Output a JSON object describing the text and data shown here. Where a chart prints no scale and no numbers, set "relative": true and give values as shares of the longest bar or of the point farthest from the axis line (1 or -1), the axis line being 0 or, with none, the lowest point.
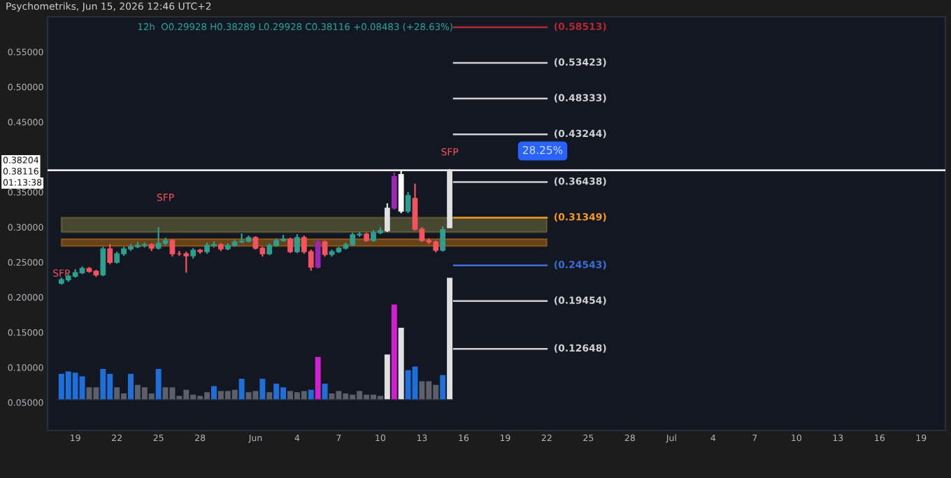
{
  "chart_data": [
    {
      "type": "candlestick",
      "title": "Psychometriks, Jun 15, 2026 12:46 UTC+2",
      "subtitle": "12h  O0.29928 H0.38289 L0.29928 C0.38116 +0.08483 (+28.63%)",
      "x": [
        "2026-05-18T00:00",
        "2026-05-18T12:00",
        "2026-05-19T00:00",
        "2026-05-19T12:00",
        "2026-05-20T00:00",
        "2026-05-20T12:00",
        "2026-05-21T00:00",
        "2026-05-21T12:00",
        "2026-05-22T00:00",
        "2026-05-22T12:00",
        "2026-05-23T00:00",
        "2026-05-23T12:00",
        "2026-05-24T00:00",
        "2026-05-24T12:00",
        "2026-05-25T00:00",
        "2026-05-25T12:00",
        "2026-05-26T00:00",
        "2026-05-26T12:00",
        "2026-05-27T00:00",
        "2026-05-27T12:00",
        "2026-05-28T00:00",
        "2026-05-28T12:00",
        "2026-05-29T00:00",
        "2026-05-29T12:00",
        "2026-05-30T00:00",
        "2026-05-30T12:00",
        "2026-05-31T00:00",
        "2026-05-31T12:00",
        "2026-06-01T00:00",
        "2026-06-01T12:00",
        "2026-06-02T00:00",
        "2026-06-02T12:00",
        "2026-06-03T00:00",
        "2026-06-03T12:00",
        "2026-06-04T00:00",
        "2026-06-04T12:00",
        "2026-06-05T00:00",
        "2026-06-05T12:00",
        "2026-06-06T00:00",
        "2026-06-06T12:00",
        "2026-06-07T00:00",
        "2026-06-07T12:00",
        "2026-06-08T00:00",
        "2026-06-08T12:00",
        "2026-06-09T00:00",
        "2026-06-09T12:00",
        "2026-06-10T00:00",
        "2026-06-10T12:00",
        "2026-06-11T00:00",
        "2026-06-11T12:00",
        "2026-06-12T00:00",
        "2026-06-12T12:00",
        "2026-06-13T00:00",
        "2026-06-13T12:00",
        "2026-06-14T00:00",
        "2026-06-14T12:00",
        "2026-06-15T00:00"
      ],
      "ohlc": [
        [
          0.22,
          0.228,
          0.218,
          0.225
        ],
        [
          0.225,
          0.233,
          0.222,
          0.23
        ],
        [
          0.23,
          0.24,
          0.228,
          0.235
        ],
        [
          0.235,
          0.244,
          0.233,
          0.241
        ],
        [
          0.241,
          0.243,
          0.235,
          0.237
        ],
        [
          0.237,
          0.239,
          0.229,
          0.232
        ],
        [
          0.232,
          0.272,
          0.23,
          0.269
        ],
        [
          0.269,
          0.276,
          0.247,
          0.25
        ],
        [
          0.25,
          0.265,
          0.248,
          0.262
        ],
        [
          0.262,
          0.272,
          0.259,
          0.269
        ],
        [
          0.269,
          0.276,
          0.266,
          0.272
        ],
        [
          0.272,
          0.279,
          0.27,
          0.274
        ],
        [
          0.274,
          0.278,
          0.271,
          0.275
        ],
        [
          0.275,
          0.277,
          0.266,
          0.27
        ],
        [
          0.27,
          0.3,
          0.268,
          0.277
        ],
        [
          0.277,
          0.285,
          0.274,
          0.281
        ],
        [
          0.281,
          0.283,
          0.258,
          0.262
        ],
        [
          0.262,
          0.266,
          0.259,
          0.262
        ],
        [
          0.262,
          0.265,
          0.235,
          0.259
        ],
        [
          0.259,
          0.27,
          0.255,
          0.267
        ],
        [
          0.267,
          0.269,
          0.262,
          0.265
        ],
        [
          0.265,
          0.278,
          0.262,
          0.274
        ],
        [
          0.274,
          0.28,
          0.271,
          0.275
        ],
        [
          0.275,
          0.277,
          0.266,
          0.269
        ],
        [
          0.269,
          0.277,
          0.267,
          0.274
        ],
        [
          0.274,
          0.282,
          0.272,
          0.279
        ],
        [
          0.279,
          0.291,
          0.277,
          0.28
        ],
        [
          0.28,
          0.288,
          0.278,
          0.285
        ],
        [
          0.285,
          0.287,
          0.268,
          0.27
        ],
        [
          0.27,
          0.272,
          0.258,
          0.262
        ],
        [
          0.262,
          0.277,
          0.26,
          0.274
        ],
        [
          0.274,
          0.284,
          0.272,
          0.281
        ],
        [
          0.281,
          0.289,
          0.279,
          0.283
        ],
        [
          0.283,
          0.285,
          0.263,
          0.265
        ],
        [
          0.265,
          0.29,
          0.263,
          0.285
        ],
        [
          0.285,
          0.288,
          0.262,
          0.265
        ],
        [
          0.265,
          0.268,
          0.238,
          0.243
        ],
        [
          0.243,
          0.282,
          0.241,
          0.279
        ],
        [
          0.279,
          0.281,
          0.258,
          0.261
        ],
        [
          0.261,
          0.268,
          0.258,
          0.265
        ],
        [
          0.265,
          0.272,
          0.263,
          0.27
        ],
        [
          0.27,
          0.278,
          0.268,
          0.275
        ],
        [
          0.275,
          0.292,
          0.273,
          0.289
        ],
        [
          0.289,
          0.293,
          0.286,
          0.29
        ],
        [
          0.29,
          0.292,
          0.279,
          0.281
        ],
        [
          0.281,
          0.296,
          0.279,
          0.292
        ],
        [
          0.292,
          0.3,
          0.29,
          0.295
        ],
        [
          0.295,
          0.334,
          0.293,
          0.327
        ],
        [
          0.327,
          0.378,
          0.325,
          0.372
        ],
        [
          0.375,
          0.38,
          0.32,
          0.323
        ],
        [
          0.323,
          0.35,
          0.32,
          0.345
        ],
        [
          0.341,
          0.362,
          0.295,
          0.297
        ],
        [
          0.297,
          0.3,
          0.279,
          0.281
        ],
        [
          0.281,
          0.284,
          0.276,
          0.279
        ],
        [
          0.279,
          0.281,
          0.264,
          0.267
        ],
        [
          0.267,
          0.301,
          0.265,
          0.29633
        ],
        [
          0.29928,
          0.38289,
          0.29928,
          0.38116
        ]
      ],
      "colors": [
        "#2e9e8f",
        "#2e9e8f",
        "#2e9e8f",
        "#2e9e8f",
        "#f7525f",
        "#f7525f",
        "#2e9e8f",
        "#f7525f",
        "#2e9e8f",
        "#2e9e8f",
        "#2e9e8f",
        "#2e9e8f",
        "#2e9e8f",
        "#f7525f",
        "#2e9e8f",
        "#2e9e8f",
        "#f7525f",
        "#f7525f",
        "#f7525f",
        "#2e9e8f",
        "#f7525f",
        "#2e9e8f",
        "#2e9e8f",
        "#f7525f",
        "#2e9e8f",
        "#2e9e8f",
        "#2e9e8f",
        "#2e9e8f",
        "#f7525f",
        "#f7525f",
        "#2e9e8f",
        "#2e9e8f",
        "#2e9e8f",
        "#f7525f",
        "#2e9e8f",
        "#f7525f",
        "#f7525f",
        "#9c27b0",
        "#f7525f",
        "#2e9e8f",
        "#2e9e8f",
        "#2e9e8f",
        "#2e9e8f",
        "#2e9e8f",
        "#f7525f",
        "#2e9e8f",
        "#2e9e8f",
        "#e0e0e0",
        "#9c27b0",
        "#ffffff",
        "#2e9e8f",
        "#f7525f",
        "#f7525f",
        "#f7525f",
        "#f7525f",
        "#2e9e8f",
        "#e0e0e0"
      ],
      "xlim": [
        "2026-05-17T00:00",
        "2026-07-20T18:00"
      ],
      "xticks": [
        {
          "value": "2026-05-19",
          "label": "19"
        },
        {
          "value": "2026-05-22",
          "label": "22"
        },
        {
          "value": "2026-05-25",
          "label": "25"
        },
        {
          "value": "2026-05-28",
          "label": "28"
        },
        {
          "value": "2026-06-01",
          "label": "Jun"
        },
        {
          "value": "2026-06-04",
          "label": "4"
        },
        {
          "value": "2026-06-07",
          "label": "7"
        },
        {
          "value": "2026-06-10",
          "label": "10"
        },
        {
          "value": "2026-06-13",
          "label": "13"
        },
        {
          "value": "2026-06-16",
          "label": "16"
        },
        {
          "value": "2026-06-19",
          "label": "19"
        },
        {
          "value": "2026-06-22",
          "label": "22"
        },
        {
          "value": "2026-06-25",
          "label": "25"
        },
        {
          "value": "2026-06-28",
          "label": "28"
        },
        {
          "value": "2026-07-01",
          "label": "Jul"
        },
        {
          "value": "2026-07-04",
          "label": "4"
        },
        {
          "value": "2026-07-07",
          "label": "7"
        },
        {
          "value": "2026-07-10",
          "label": "10"
        },
        {
          "value": "2026-07-13",
          "label": "13"
        },
        {
          "value": "2026-07-16",
          "label": "16"
        },
        {
          "value": "2026-07-19",
          "label": "19"
        }
      ],
      "ylim": [
        0.01,
        0.6
      ],
      "yticks": [
        {
          "value": 0.05,
          "label": "0.05000"
        },
        {
          "value": 0.1,
          "label": "0.10000"
        },
        {
          "value": 0.15,
          "label": "0.15000"
        },
        {
          "value": 0.2,
          "label": "0.20000"
        },
        {
          "value": 0.25,
          "label": "0.25000"
        },
        {
          "value": 0.3,
          "label": "0.30000"
        },
        {
          "value": 0.35,
          "label": "0.35000"
        },
        {
          "value": 0.45,
          "label": "0.45000"
        },
        {
          "value": 0.5,
          "label": "0.50000"
        },
        {
          "value": 0.55,
          "label": "0.55000"
        }
      ],
      "ref_lines": [
        {
          "axis": "y",
          "value": 0.38116,
          "label": null,
          "color": "#e8e8e8"
        },
        {
          "axis": "y",
          "value": 0.58513,
          "label": "(0.58513)",
          "color": "#b22833"
        },
        {
          "axis": "y",
          "value": 0.53423,
          "label": "(0.53423)",
          "color": "#d0d0d0"
        },
        {
          "axis": "y",
          "value": 0.48333,
          "label": "(0.48333)",
          "color": "#d0d0d0"
        },
        {
          "axis": "y",
          "value": 0.43244,
          "label": "(0.43244)",
          "color": "#d0d0d0"
        },
        {
          "axis": "y",
          "value": 0.36438,
          "label": "(0.36438)",
          "color": "#d0d0d0"
        },
        {
          "axis": "y",
          "value": 0.31349,
          "label": "(0.31349)",
          "color": "#f59b22"
        },
        {
          "axis": "y",
          "value": 0.24543,
          "label": "(0.24543)",
          "color": "#3a6fd8"
        },
        {
          "axis": "y",
          "value": 0.19454,
          "label": "(0.19454)",
          "color": "#d0d0d0"
        },
        {
          "axis": "y",
          "value": 0.12648,
          "label": "(0.12648)",
          "color": "#d0d0d0"
        }
      ],
      "bands": [
        {
          "axis": "y",
          "from": 0.273,
          "to": 0.283,
          "color": "#c87a12"
        },
        {
          "axis": "y",
          "from": 0.293,
          "to": 0.31349,
          "color": "#8a8240"
        }
      ],
      "annotations": [
        "0.38204",
        "0.38116",
        "01:13:38",
        {
          "text": "SFP",
          "x": "2026-05-25T12:00",
          "y": 0.318
        },
        {
          "text": "SFP",
          "x": "2026-06-15T00:00",
          "y": 0.38289
        },
        {
          "text": "SFP",
          "x": "2026-05-18T00:00",
          "y": 0.21
        },
        "28.25%"
      ]
    },
    {
      "type": "bar",
      "relative": true,
      "categories": [
        null,
        null,
        null,
        null,
        null,
        null,
        null,
        null,
        null,
        null,
        null,
        null,
        null,
        null,
        null,
        null,
        null,
        null,
        null,
        null,
        null,
        null,
        null,
        null,
        null,
        null,
        null,
        null,
        null,
        null,
        null,
        null,
        null,
        null,
        null,
        null,
        null,
        null,
        null,
        null,
        null,
        null,
        null,
        null,
        null,
        null,
        null,
        null,
        null,
        null,
        null,
        null,
        null,
        null,
        null,
        null,
        null
      ],
      "values": [
        0.21,
        0.23,
        0.22,
        0.19,
        0.1,
        0.1,
        0.25,
        0.21,
        0.1,
        0.05,
        0.21,
        0.12,
        0.1,
        0.05,
        0.25,
        0.1,
        0.1,
        0.03,
        0.08,
        0.04,
        0.03,
        0.06,
        0.11,
        0.07,
        0.07,
        0.08,
        0.17,
        0.06,
        0.07,
        0.17,
        0.06,
        0.13,
        0.1,
        0.07,
        0.06,
        0.07,
        0.08,
        0.35,
        0.13,
        0.05,
        0.07,
        0.05,
        0.04,
        0.07,
        0.04,
        0.04,
        0.03,
        0.37,
        0.78,
        0.59,
        0.24,
        0.27,
        0.15,
        0.15,
        0.12,
        0.2,
        1.0
      ],
      "colors": [
        "#1e6fd9",
        "#1e6fd9",
        "#1e6fd9",
        "#1e6fd9",
        "#5d606b",
        "#5d606b",
        "#1e6fd9",
        "#1e6fd9",
        "#5d606b",
        "#5d606b",
        "#1e6fd9",
        "#5d606b",
        "#5d606b",
        "#5d606b",
        "#1e6fd9",
        "#5d606b",
        "#5d606b",
        "#5d606b",
        "#5d606b",
        "#5d606b",
        "#5d606b",
        "#5d606b",
        "#1e6fd9",
        "#5d606b",
        "#5d606b",
        "#5d606b",
        "#1e6fd9",
        "#5d606b",
        "#5d606b",
        "#1e6fd9",
        "#5d606b",
        "#1e6fd9",
        "#1e6fd9",
        "#5d606b",
        "#5d606b",
        "#5d606b",
        "#1e6fd9",
        "#d020d0",
        "#1e6fd9",
        "#5d606b",
        "#5d606b",
        "#5d606b",
        "#5d606b",
        "#5d606b",
        "#5d606b",
        "#5d606b",
        "#5d606b",
        "#e0e0e0",
        "#d020d0",
        "#e0e0e0",
        "#1e6fd9",
        "#1e6fd9",
        "#5d606b",
        "#5d606b",
        "#5d606b",
        "#1e6fd9",
        "#e0e0e0"
      ]
    }
  ]
}
